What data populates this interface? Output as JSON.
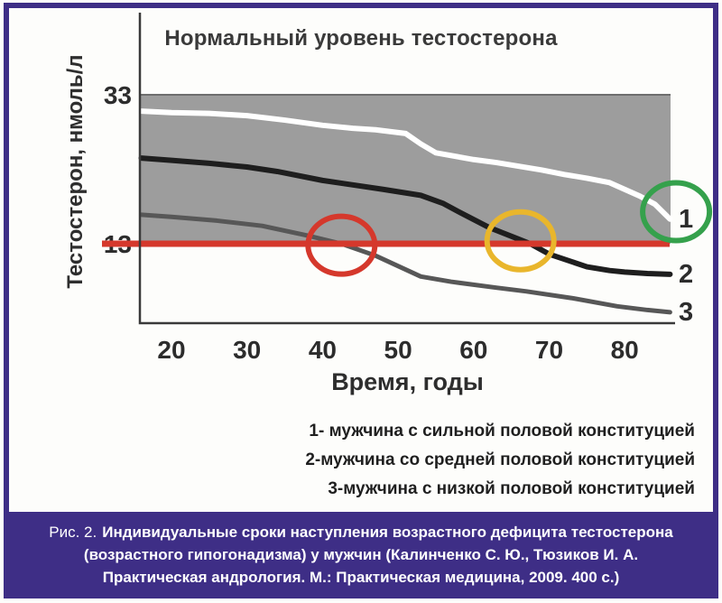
{
  "chart_data": {
    "type": "line",
    "title": "Нормальный уровень тестостерона",
    "xlabel": "Время, годы",
    "ylabel": "Тестостерон, нмоль/л",
    "x_ticks": [
      20,
      30,
      40,
      50,
      60,
      70,
      80
    ],
    "y_ticks": [
      33,
      13
    ],
    "xlim": [
      16,
      86
    ],
    "ylim": [
      2,
      36
    ],
    "grid": false,
    "legend_position": "below-right",
    "normal_range_band": {
      "min": 13,
      "max": 33,
      "fill": "#9d9d9d"
    },
    "threshold_line": {
      "value": 13,
      "color": "#d5382c"
    },
    "series": [
      {
        "name": "1",
        "end_label": "1",
        "color": "#ffffff",
        "width": 6,
        "points": [
          [
            16,
            30.8
          ],
          [
            20,
            30.6
          ],
          [
            25,
            30.5
          ],
          [
            30,
            30.2
          ],
          [
            35,
            29.6
          ],
          [
            40,
            28.9
          ],
          [
            44,
            28.5
          ],
          [
            47,
            28.3
          ],
          [
            51,
            27.8
          ],
          [
            53,
            26.4
          ],
          [
            55,
            25.2
          ],
          [
            60,
            24.3
          ],
          [
            63,
            23.9
          ],
          [
            66,
            23.4
          ],
          [
            69,
            22.9
          ],
          [
            72,
            22.3
          ],
          [
            75,
            21.8
          ],
          [
            78,
            21.2
          ],
          [
            82,
            19.4
          ],
          [
            84,
            18.3
          ],
          [
            86,
            16.3
          ]
        ]
      },
      {
        "name": "2",
        "end_label": "2",
        "color": "#1e1e1e",
        "width": 6,
        "points": [
          [
            16,
            24.5
          ],
          [
            20,
            24.2
          ],
          [
            25,
            23.8
          ],
          [
            30,
            23.3
          ],
          [
            34,
            22.7
          ],
          [
            40,
            21.5
          ],
          [
            44,
            20.9
          ],
          [
            48,
            20.3
          ],
          [
            53,
            19.5
          ],
          [
            56,
            18.4
          ],
          [
            58,
            17.3
          ],
          [
            62,
            15.2
          ],
          [
            66,
            13.6
          ],
          [
            67.5,
            13.0
          ],
          [
            70,
            11.6
          ],
          [
            75,
            9.9
          ],
          [
            78,
            9.4
          ],
          [
            80,
            9.2
          ],
          [
            83,
            9.0
          ],
          [
            86,
            8.9
          ]
        ]
      },
      {
        "name": "3",
        "end_label": "3",
        "color": "#575757",
        "width": 5,
        "points": [
          [
            16,
            16.9
          ],
          [
            20,
            16.6
          ],
          [
            26,
            16.1
          ],
          [
            32,
            15.4
          ],
          [
            38,
            14.1
          ],
          [
            42.5,
            13.0
          ],
          [
            47,
            11.4
          ],
          [
            53,
            8.6
          ],
          [
            57,
            7.9
          ],
          [
            63,
            7.1
          ],
          [
            67,
            6.6
          ],
          [
            73,
            5.7
          ],
          [
            79,
            4.6
          ],
          [
            83,
            4.1
          ],
          [
            86,
            3.8
          ]
        ]
      }
    ],
    "annotations": [
      {
        "shape": "ellipse",
        "color": "#d5382c",
        "age": 42.5,
        "value": 12.8
      },
      {
        "shape": "ellipse",
        "color": "#e9b62c",
        "age": 66.2,
        "value": 13.4
      },
      {
        "shape": "ellipse",
        "color": "#35a14c",
        "age": 86.8,
        "value": 17.3
      }
    ],
    "legend": [
      "1- мужчина с сильной половой конституцией",
      "2-мужчина со средней половой конституцией",
      "3-мужчина с низкой половой конституцией"
    ]
  },
  "caption": {
    "prefix": "Рис. 2.",
    "lines": [
      "Индивидуальные сроки наступления возрастного дефицита тестостерона",
      "(возрастного гипогонадизма) у мужчин (Калинченко С. Ю., Тюзиков И. А.",
      "Практическая андрология. М.: Практическая медицина, 2009. 400 с.)"
    ]
  }
}
